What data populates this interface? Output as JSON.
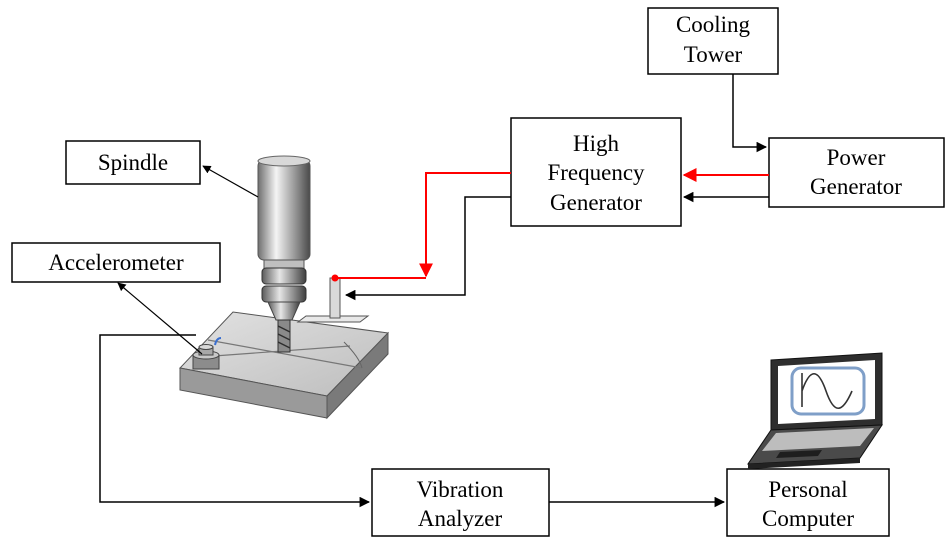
{
  "boxes": {
    "cooling_tower": [
      "Cooling",
      "Tower"
    ],
    "high_frequency_generator": [
      "High",
      "Frequency",
      "Generator"
    ],
    "power_generator": [
      "Power",
      "Generator"
    ],
    "spindle": [
      "Spindle"
    ],
    "accelerometer": [
      "Accelerometer"
    ],
    "vibration_analyzer": [
      "Vibration",
      "Analyzer"
    ],
    "personal_computer": [
      "Personal",
      "Computer"
    ]
  },
  "colors": {
    "signal_line": "#000000",
    "power_line": "#ff0000",
    "screen_border": "#7f9fc8"
  },
  "icons": [
    "spindle-icon",
    "workpiece-icon",
    "accelerometer-sensor-icon",
    "laptop-icon",
    "sine-wave-icon"
  ]
}
